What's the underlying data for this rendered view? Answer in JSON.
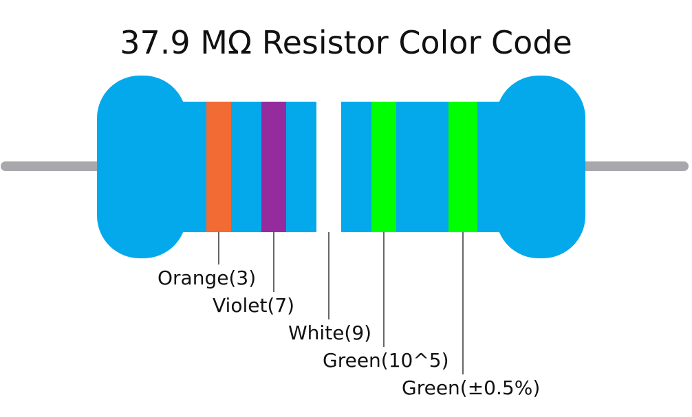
{
  "title": "37.9 MΩ Resistor Color Code",
  "colors": {
    "body": "#03A9EB",
    "lead": "#A8A8AC",
    "leader_line": "#000000",
    "band_outline": "#E8E8E8"
  },
  "bands": [
    {
      "color_name": "Orange",
      "color": "#F26B35",
      "label": "Orange(3)"
    },
    {
      "color_name": "Violet",
      "color": "#952C9E",
      "label": "Violet(7)"
    },
    {
      "color_name": "White",
      "color": "#FFFFFF",
      "label": "White(9)"
    },
    {
      "color_name": "Green",
      "color": "#00FF00",
      "label": "Green(10^5)"
    },
    {
      "color_name": "Green",
      "color": "#00FF00",
      "label": "Green(±0.5%)"
    }
  ]
}
